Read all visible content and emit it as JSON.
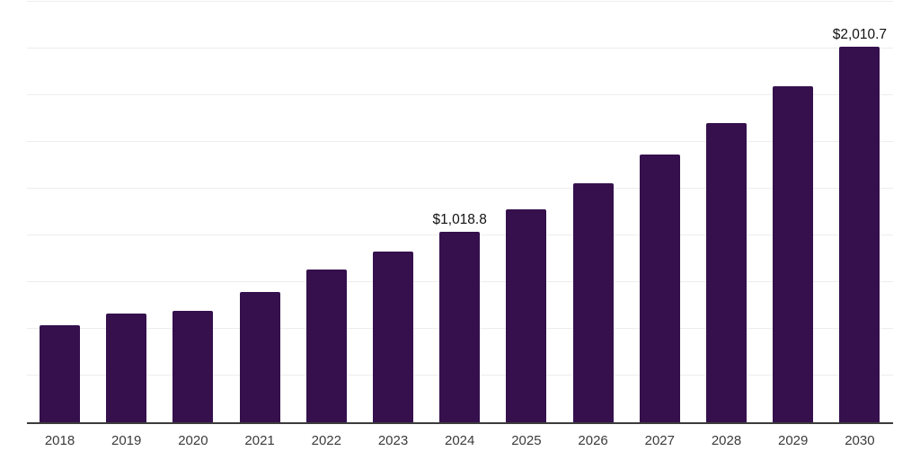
{
  "chart_data": {
    "type": "bar",
    "title": "",
    "categories": [
      "2018",
      "2019",
      "2020",
      "2021",
      "2022",
      "2023",
      "2024",
      "2025",
      "2026",
      "2027",
      "2028",
      "2029",
      "2030"
    ],
    "values": [
      520,
      582,
      597,
      698,
      818,
      914,
      1018.8,
      1141,
      1278,
      1431,
      1603,
      1796,
      2010.7
    ],
    "point_labels": [
      "",
      "",
      "",
      "",
      "",
      "",
      "$1,018.8",
      "",
      "",
      "",
      "",
      "",
      "$2,010.7"
    ],
    "xlabel": "",
    "ylabel": "",
    "ylim": [
      0,
      2250
    ],
    "grid_step": 250,
    "grid": "horizontal-only",
    "legend_position": "none",
    "colors": {
      "bar": "#35104d",
      "gridline": "#ededed",
      "axis_line": "#3c3c3c",
      "value_label": "#111111",
      "tick_label": "#3b3b3b",
      "background": "#ffffff"
    }
  }
}
